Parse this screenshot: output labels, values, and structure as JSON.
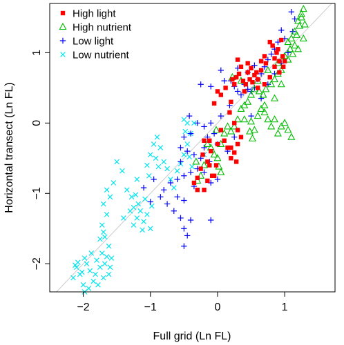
{
  "chart_data": {
    "type": "scatter",
    "xlabel": "Full grid (Ln FL)",
    "ylabel": "Horizontal transect (Ln FL)",
    "xlim": [
      -2.5,
      1.75
    ],
    "ylim": [
      -2.4,
      1.7
    ],
    "x_ticks": [
      {
        "value": -2,
        "label": "−2"
      },
      {
        "value": -1,
        "label": "−1"
      },
      {
        "value": 0,
        "label": "0"
      },
      {
        "value": 1,
        "label": "1"
      }
    ],
    "y_ticks": [
      {
        "value": -2,
        "label": "−2"
      },
      {
        "value": -1,
        "label": "−1"
      },
      {
        "value": 0,
        "label": "0"
      },
      {
        "value": 1,
        "label": "1"
      }
    ],
    "reference_line": {
      "slope": 1,
      "intercept": 0,
      "color": "#cccccc"
    },
    "grid": false,
    "legend_position": "top-left",
    "series": [
      {
        "name": "High light",
        "marker": "square",
        "color": "#ff0000",
        "points": [
          [
            0.78,
            1.15
          ],
          [
            0.82,
            1.1
          ],
          [
            0.9,
            1.05
          ],
          [
            0.95,
            1.18
          ],
          [
            0.88,
            1.0
          ],
          [
            0.97,
            0.95
          ],
          [
            1.0,
            0.88
          ],
          [
            0.85,
            0.92
          ],
          [
            0.92,
            0.88
          ],
          [
            0.7,
            0.95
          ],
          [
            0.72,
            0.85
          ],
          [
            0.65,
            0.75
          ],
          [
            0.6,
            0.62
          ],
          [
            0.55,
            0.68
          ],
          [
            0.52,
            0.58
          ],
          [
            0.48,
            0.62
          ],
          [
            0.45,
            0.72
          ],
          [
            0.42,
            0.55
          ],
          [
            0.38,
            0.6
          ],
          [
            0.35,
            0.8
          ],
          [
            0.32,
            0.7
          ],
          [
            0.3,
            0.9
          ],
          [
            0.28,
            0.65
          ],
          [
            0.25,
            0.55
          ],
          [
            0.22,
            0.62
          ],
          [
            0.45,
            0.85
          ],
          [
            0.5,
            0.78
          ],
          [
            0.6,
            0.5
          ],
          [
            0.7,
            0.55
          ],
          [
            0.78,
            0.65
          ],
          [
            0.85,
            0.8
          ],
          [
            0.92,
            0.72
          ],
          [
            0.98,
            0.8
          ],
          [
            0.4,
            0.45
          ],
          [
            0.58,
            0.72
          ],
          [
            0.65,
            0.88
          ],
          [
            0.05,
            0.4
          ],
          [
            0.0,
            0.45
          ],
          [
            -0.05,
            0.28
          ],
          [
            0.12,
            0.5
          ],
          [
            0.2,
            0.3
          ],
          [
            0.18,
            0.15
          ],
          [
            0.25,
            0.0
          ],
          [
            0.3,
            -0.1
          ],
          [
            0.35,
            -0.2
          ],
          [
            0.3,
            -0.3
          ],
          [
            0.25,
            -0.42
          ],
          [
            0.2,
            -0.5
          ],
          [
            0.15,
            -0.35
          ],
          [
            0.1,
            -0.25
          ],
          [
            0.0,
            -0.3
          ],
          [
            -0.1,
            -0.4
          ],
          [
            -0.12,
            -0.6
          ],
          [
            -0.08,
            -0.75
          ],
          [
            -0.15,
            -0.55
          ],
          [
            -0.2,
            -0.25
          ],
          [
            -0.22,
            -0.45
          ],
          [
            -0.25,
            -0.65
          ],
          [
            -0.3,
            -0.78
          ],
          [
            -0.35,
            -0.85
          ],
          [
            -0.3,
            -0.95
          ],
          [
            -0.2,
            -0.95
          ],
          [
            -0.15,
            -0.82
          ],
          [
            -0.05,
            -0.75
          ],
          [
            -0.02,
            -0.6
          ],
          [
            0.2,
            -0.35
          ],
          [
            0.28,
            -0.55
          ],
          [
            -0.12,
            -0.25
          ],
          [
            0.05,
            -0.1
          ]
        ]
      },
      {
        "name": "High nutrient",
        "marker": "triangle",
        "color": "#00bb00",
        "points": [
          [
            1.28,
            1.62
          ],
          [
            1.25,
            1.55
          ],
          [
            1.2,
            1.45
          ],
          [
            1.15,
            1.3
          ],
          [
            1.1,
            1.2
          ],
          [
            1.05,
            1.15
          ],
          [
            1.18,
            1.25
          ],
          [
            1.22,
            1.38
          ],
          [
            1.25,
            1.5
          ],
          [
            1.3,
            1.4
          ],
          [
            1.15,
            1.1
          ],
          [
            1.08,
            1.05
          ],
          [
            1.0,
            0.95
          ],
          [
            0.95,
            0.75
          ],
          [
            0.9,
            0.7
          ],
          [
            0.85,
            0.62
          ],
          [
            0.8,
            0.55
          ],
          [
            0.72,
            0.48
          ],
          [
            0.68,
            0.4
          ],
          [
            0.62,
            0.45
          ],
          [
            0.55,
            0.48
          ],
          [
            0.5,
            0.4
          ],
          [
            0.45,
            0.3
          ],
          [
            0.4,
            0.25
          ],
          [
            0.35,
            0.2
          ],
          [
            0.3,
            0.05
          ],
          [
            0.25,
            -0.05
          ],
          [
            0.2,
            -0.12
          ],
          [
            0.15,
            -0.05
          ],
          [
            0.1,
            -0.15
          ],
          [
            0.05,
            -0.3
          ],
          [
            0.0,
            -0.5
          ],
          [
            -0.05,
            -0.45
          ],
          [
            -0.1,
            -0.35
          ],
          [
            -0.15,
            -0.3
          ],
          [
            -0.2,
            -0.6
          ],
          [
            -0.25,
            -0.75
          ],
          [
            -0.3,
            -0.82
          ],
          [
            -0.32,
            -0.55
          ],
          [
            0.5,
            0.02
          ],
          [
            0.55,
            -0.1
          ],
          [
            0.6,
            0.1
          ],
          [
            0.65,
            0.2
          ],
          [
            0.7,
            0.15
          ],
          [
            0.75,
            0.05
          ],
          [
            0.8,
            -0.05
          ],
          [
            0.85,
            0.05
          ],
          [
            0.9,
            -0.15
          ],
          [
            0.95,
            -0.05
          ],
          [
            1.0,
            0.0
          ],
          [
            1.05,
            -0.1
          ],
          [
            1.1,
            -0.2
          ],
          [
            0.6,
            0.6
          ],
          [
            0.75,
            0.75
          ],
          [
            0.9,
            0.85
          ],
          [
            1.05,
            0.9
          ],
          [
            1.12,
            0.98
          ],
          [
            0.35,
            0.6
          ],
          [
            0.22,
            0.65
          ],
          [
            0.4,
            0.05
          ],
          [
            0.48,
            -0.12
          ],
          [
            0.52,
            -0.22
          ],
          [
            0.02,
            -0.62
          ],
          [
            -0.02,
            -0.1
          ],
          [
            0.05,
            -0.7
          ],
          [
            1.28,
            1.2
          ],
          [
            1.2,
            1.05
          ],
          [
            0.95,
            0.55
          ],
          [
            0.7,
            0.25
          ],
          [
            0.85,
            0.35
          ]
        ]
      },
      {
        "name": "Low light",
        "marker": "plus",
        "color": "#0000ff",
        "points": [
          [
            1.1,
            1.58
          ],
          [
            1.15,
            1.48
          ],
          [
            0.95,
            1.32
          ],
          [
            1.0,
            1.2
          ],
          [
            0.9,
            1.15
          ],
          [
            0.85,
            1.05
          ],
          [
            0.8,
            0.98
          ],
          [
            0.75,
            0.9
          ],
          [
            0.7,
            0.8
          ],
          [
            0.65,
            0.7
          ],
          [
            0.6,
            0.62
          ],
          [
            0.55,
            0.5
          ],
          [
            0.5,
            0.45
          ],
          [
            0.45,
            0.48
          ],
          [
            0.4,
            0.55
          ],
          [
            0.35,
            0.4
          ],
          [
            0.3,
            0.45
          ],
          [
            0.25,
            0.52
          ],
          [
            0.2,
            0.6
          ],
          [
            0.05,
            0.75
          ],
          [
            0.1,
            0.6
          ],
          [
            -0.1,
            0.52
          ],
          [
            -0.25,
            0.55
          ],
          [
            0.18,
            0.25
          ],
          [
            0.05,
            0.1
          ],
          [
            -0.1,
            0.0
          ],
          [
            -0.2,
            -0.05
          ],
          [
            -0.3,
            0.0
          ],
          [
            -0.4,
            -0.15
          ],
          [
            -0.5,
            -0.2
          ],
          [
            -0.55,
            -0.35
          ],
          [
            -0.45,
            -0.4
          ],
          [
            -0.35,
            -0.45
          ],
          [
            -0.25,
            -0.5
          ],
          [
            -0.2,
            -0.35
          ],
          [
            -0.15,
            -0.2
          ],
          [
            -0.05,
            -0.15
          ],
          [
            0.0,
            -0.3
          ],
          [
            -0.3,
            -0.65
          ],
          [
            -0.4,
            -0.7
          ],
          [
            -0.5,
            -0.75
          ],
          [
            -0.6,
            -0.8
          ],
          [
            -0.7,
            -0.85
          ],
          [
            -0.8,
            -0.95
          ],
          [
            -0.6,
            -1.05
          ],
          [
            -0.5,
            -1.1
          ],
          [
            -0.65,
            -1.25
          ],
          [
            -0.75,
            -1.15
          ],
          [
            -0.85,
            -1.05
          ],
          [
            -0.55,
            -1.35
          ],
          [
            -0.5,
            -1.5
          ],
          [
            -0.45,
            -1.6
          ],
          [
            -0.5,
            -1.75
          ],
          [
            -0.4,
            -1.38
          ],
          [
            -0.1,
            -1.38
          ],
          [
            -1.0,
            -1.12
          ],
          [
            -1.1,
            -0.92
          ],
          [
            -0.95,
            -0.8
          ],
          [
            -0.2,
            -0.7
          ],
          [
            -0.12,
            -0.55
          ],
          [
            0.0,
            -0.8
          ],
          [
            0.15,
            -0.4
          ],
          [
            0.25,
            -0.2
          ],
          [
            0.5,
            0.1
          ],
          [
            0.65,
            0.35
          ],
          [
            0.75,
            0.55
          ],
          [
            0.85,
            0.7
          ],
          [
            0.95,
            0.85
          ],
          [
            1.05,
            1.0
          ],
          [
            1.12,
            1.3
          ],
          [
            -0.42,
            0.1
          ],
          [
            -0.55,
            -0.55
          ],
          [
            -0.35,
            -0.9
          ],
          [
            -0.1,
            -0.85
          ],
          [
            0.3,
            0.78
          ],
          [
            0.45,
            0.72
          ],
          [
            0.55,
            0.82
          ]
        ]
      },
      {
        "name": "Low nutrient",
        "marker": "x",
        "color": "#00e5ee",
        "points": [
          [
            -2.15,
            -2.2
          ],
          [
            -2.1,
            -2.05
          ],
          [
            -2.05,
            -2.15
          ],
          [
            -2.0,
            -2.3
          ],
          [
            -1.95,
            -2.0
          ],
          [
            -1.9,
            -2.1
          ],
          [
            -1.85,
            -2.25
          ],
          [
            -1.8,
            -1.95
          ],
          [
            -1.75,
            -2.05
          ],
          [
            -1.7,
            -2.2
          ],
          [
            -1.65,
            -1.9
          ],
          [
            -1.6,
            -2.05
          ],
          [
            -1.98,
            -1.92
          ],
          [
            -2.02,
            -2.12
          ],
          [
            -1.92,
            -2.35
          ],
          [
            -1.88,
            -1.85
          ],
          [
            -1.82,
            -2.15
          ],
          [
            -1.78,
            -2.3
          ],
          [
            -1.72,
            -1.85
          ],
          [
            -1.68,
            -2.0
          ],
          [
            -1.62,
            -1.75
          ],
          [
            -1.75,
            -1.65
          ],
          [
            -1.7,
            -1.55
          ],
          [
            -1.72,
            -1.45
          ],
          [
            -1.65,
            -1.3
          ],
          [
            -1.6,
            -1.05
          ],
          [
            -1.55,
            -0.85
          ],
          [
            -1.65,
            -0.95
          ],
          [
            -1.7,
            -1.15
          ],
          [
            -1.4,
            -1.35
          ],
          [
            -1.3,
            -1.25
          ],
          [
            -1.25,
            -1.45
          ],
          [
            -1.2,
            -1.35
          ],
          [
            -1.15,
            -1.25
          ],
          [
            -1.1,
            -1.4
          ],
          [
            -1.05,
            -1.3
          ],
          [
            -1.0,
            -1.5
          ],
          [
            -1.18,
            -1.15
          ],
          [
            -1.22,
            -1.02
          ],
          [
            -1.28,
            -1.05
          ],
          [
            -1.35,
            -0.95
          ],
          [
            -1.42,
            -0.68
          ],
          [
            -1.5,
            -0.55
          ],
          [
            -1.2,
            -0.8
          ],
          [
            -1.05,
            -0.6
          ],
          [
            -1.0,
            -0.45
          ],
          [
            -0.95,
            -0.3
          ],
          [
            -0.9,
            -0.2
          ],
          [
            -0.85,
            -0.35
          ],
          [
            -0.8,
            -0.55
          ],
          [
            -0.75,
            -0.65
          ],
          [
            -0.7,
            -0.8
          ],
          [
            -0.65,
            -0.92
          ],
          [
            -0.6,
            -0.68
          ],
          [
            -0.55,
            -0.58
          ],
          [
            -0.5,
            -0.45
          ],
          [
            -0.45,
            -0.3
          ],
          [
            -0.4,
            -0.15
          ],
          [
            -0.35,
            0.0
          ],
          [
            -0.45,
            0.0
          ],
          [
            -0.48,
            -0.12
          ],
          [
            -0.42,
            -0.48
          ],
          [
            -0.38,
            -0.62
          ],
          [
            -0.5,
            0.05
          ],
          [
            -1.98,
            -2.4
          ],
          [
            -2.08,
            -1.98
          ],
          [
            -2.12,
            -2.02
          ],
          [
            -1.62,
            -2.15
          ],
          [
            -1.58,
            -1.92
          ],
          [
            -1.68,
            -1.62
          ],
          [
            -1.25,
            -1.2
          ],
          [
            -1.12,
            -1.52
          ],
          [
            -1.08,
            -1.08
          ],
          [
            -0.98,
            -1.18
          ],
          [
            -0.88,
            -0.62
          ],
          [
            -1.02,
            -0.75
          ],
          [
            -0.92,
            -0.5
          ],
          [
            -0.2,
            -0.45
          ]
        ]
      }
    ]
  }
}
